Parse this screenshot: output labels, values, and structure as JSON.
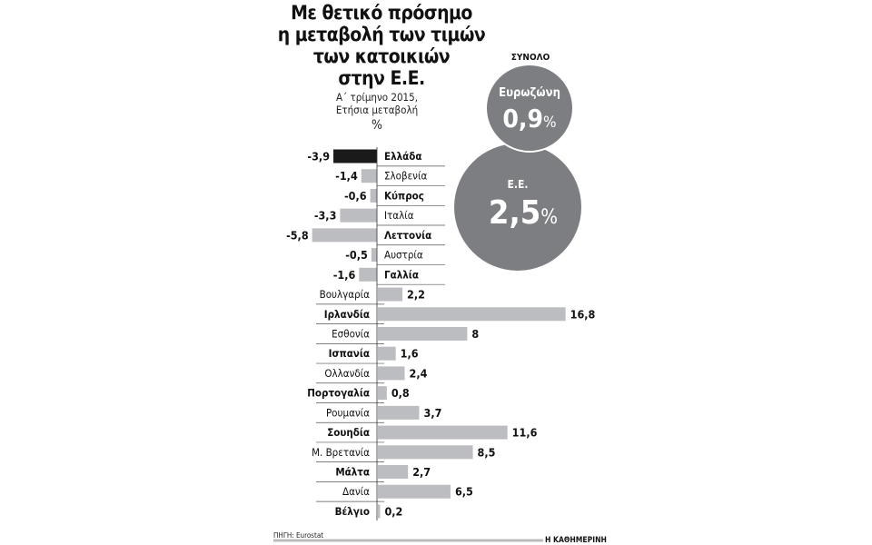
{
  "chart_data": {
    "type": "bar",
    "orientation": "horizontal",
    "title": "Με θετικό πρόσημο η μεταβολή των τιμών των κατοικιών στην Ε.Ε.",
    "subtitle": "Α΄ τρίμηνο 2015, Ετήσια μεταβολή",
    "unit": "%",
    "categories": [
      "Ελλάδα",
      "Σλοβενία",
      "Κύπρος",
      "Ιταλία",
      "Λεττονία",
      "Αυστρία",
      "Γαλλία",
      "Βουλγαρία",
      "Ιρλανδία",
      "Εσθονία",
      "Ισπανία",
      "Ολλανδία",
      "Πορτογαλία",
      "Ρουμανία",
      "Σουηδία",
      "Μ. Βρετανία",
      "Μάλτα",
      "Δανία",
      "Βέλγιο"
    ],
    "values": [
      -3.9,
      -1.4,
      -0.6,
      -3.3,
      -5.8,
      -0.5,
      -1.6,
      2.2,
      16.8,
      8,
      1.6,
      2.4,
      0.8,
      3.7,
      11.6,
      8.5,
      2.7,
      6.5,
      0.2
    ],
    "labels": [
      "-3,9",
      "-1,4",
      "-0,6",
      "-3,3",
      "-5,8",
      "-0,5",
      "-1,6",
      "2,2",
      "16,8",
      "8",
      "1,6",
      "2,4",
      "0,8",
      "3,7",
      "11,6",
      "8,5",
      "2,7",
      "6,5",
      "0,2"
    ],
    "highlight": "Ελλάδα",
    "colors": {
      "bar": "#bcbdc0",
      "highlight": "#1a1a1a",
      "circle": "#7d7e81"
    }
  },
  "totals": {
    "heading": "ΣΥΝΟΛΟ",
    "items": [
      {
        "name": "Ευρωζώνη",
        "value": "0,9",
        "unit": "%"
      },
      {
        "name": "Ε.Ε.",
        "value": "2,5",
        "unit": "%"
      }
    ]
  },
  "footer": {
    "source": "ΠΗΓΗ: Eurostat",
    "brand": "Η ΚΑΘΗΜΕΡΙΝΗ"
  }
}
